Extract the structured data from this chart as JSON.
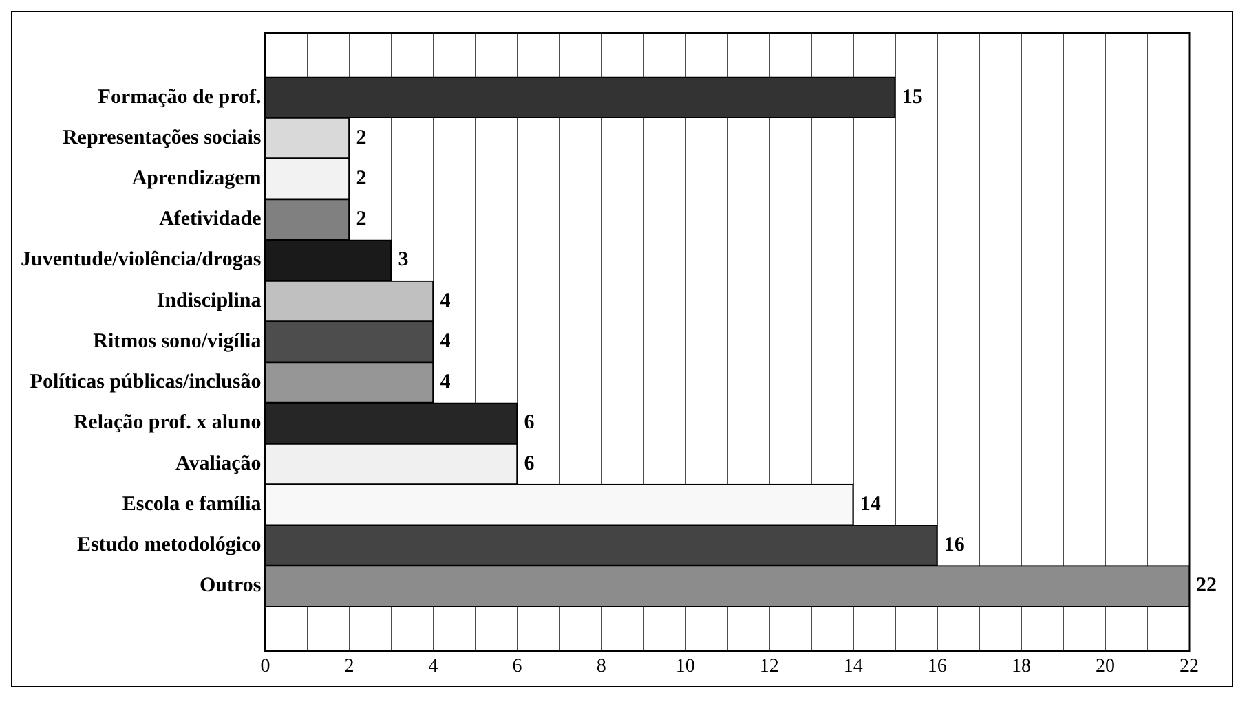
{
  "chart_data": {
    "type": "bar",
    "orientation": "horizontal",
    "categories": [
      "Formação de prof.",
      "Representações sociais",
      "Aprendizagem",
      "Afetividade",
      "Juventude/violência/drogas",
      "Indisciplina",
      "Ritmos sono/vigília",
      "Políticas públicas/inclusão",
      "Relação prof. x aluno",
      "Avaliação",
      "Escola e família",
      "Estudo metodológico",
      "Outros"
    ],
    "values": [
      15,
      2,
      2,
      2,
      3,
      4,
      4,
      4,
      6,
      6,
      14,
      16,
      22
    ],
    "colors": [
      "#333333",
      "#d9d9d9",
      "#f2f2f2",
      "#808080",
      "#1a1a1a",
      "#c0c0c0",
      "#4d4d4d",
      "#969696",
      "#262626",
      "#f0f0f0",
      "#f8f8f8",
      "#444444",
      "#8c8c8c"
    ],
    "xlim": [
      0,
      22
    ],
    "xticks": [
      0,
      {
        "value": 1,
        "label": null
      },
      2,
      {
        "value": 3,
        "label": null
      },
      4,
      {
        "value": 5,
        "label": null
      },
      6,
      {
        "value": 7,
        "label": null
      },
      8,
      {
        "value": 9,
        "label": null
      },
      10,
      {
        "value": 11,
        "label": null
      },
      12,
      {
        "value": 13,
        "label": null
      },
      14,
      {
        "value": 15,
        "label": null
      },
      16,
      {
        "value": 17,
        "label": null
      },
      18,
      {
        "value": 19,
        "label": null
      },
      20,
      {
        "value": 21,
        "label": null
      },
      22
    ],
    "grid": "x",
    "data_labels": true,
    "legend": false
  }
}
